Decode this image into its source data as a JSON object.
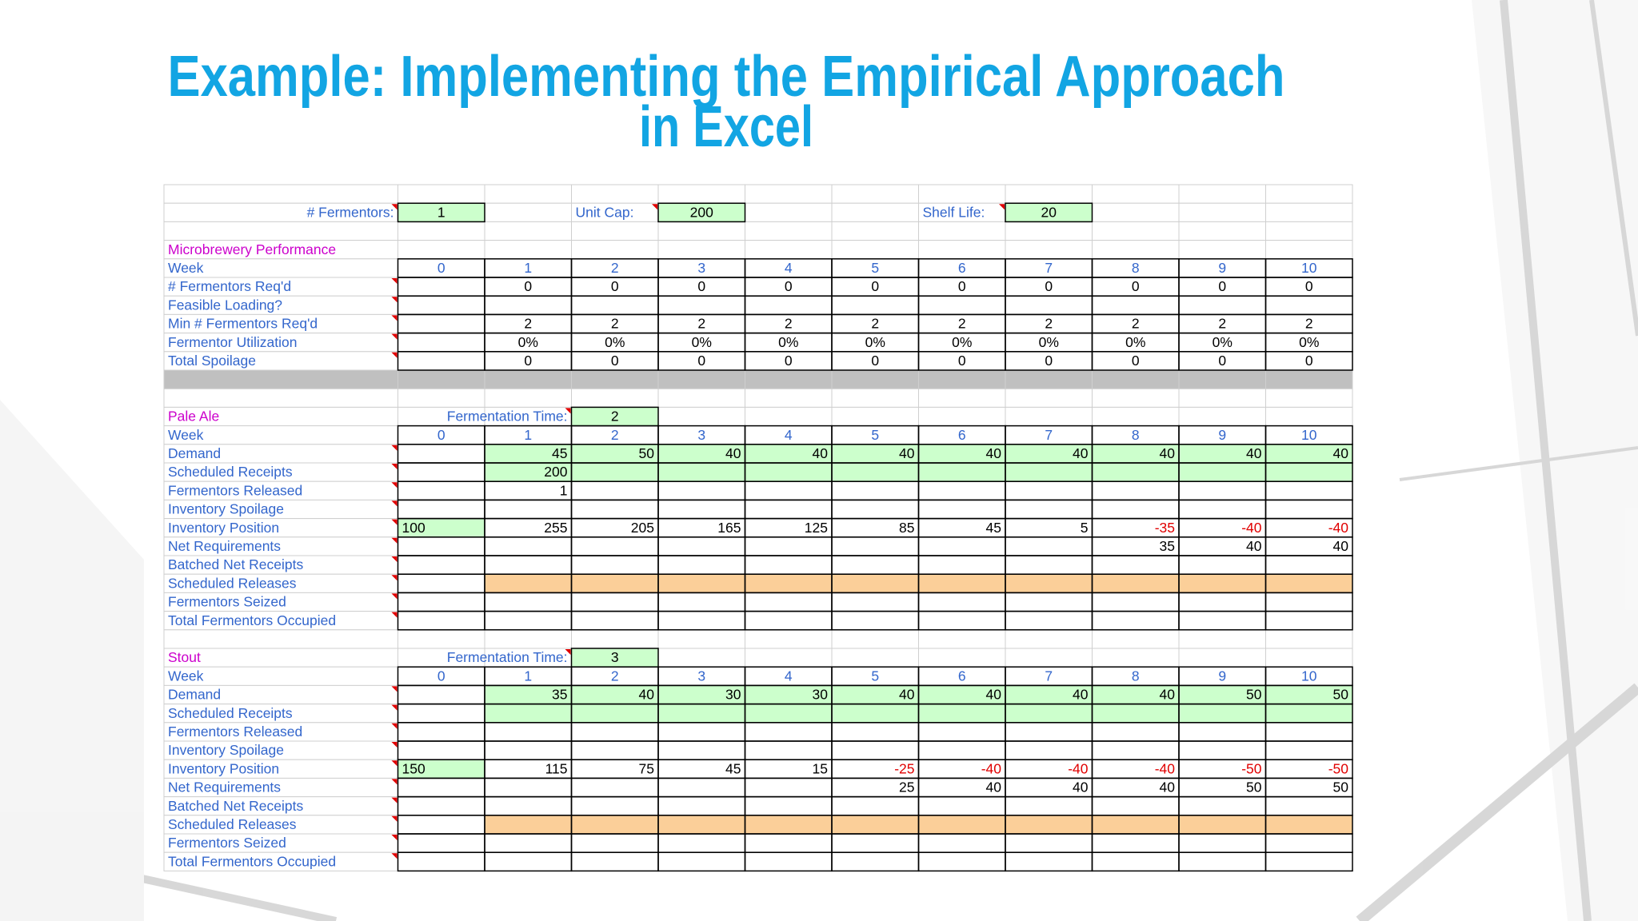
{
  "title_lines": [
    "Example: Implementing the Empirical Approach",
    "in Excel"
  ],
  "parameters": [
    {
      "label": "# Fermentors:",
      "value": 1
    },
    {
      "label": "Unit Cap:",
      "value": 200
    },
    {
      "label": "Shelf Life:",
      "value": 20
    }
  ],
  "performance": {
    "title": "Microbrewery Performance",
    "week_label": "Week",
    "weeks": [
      0,
      1,
      2,
      3,
      4,
      5,
      6,
      7,
      8,
      9,
      10
    ],
    "rows": [
      {
        "label": "# Fermentors Req'd",
        "cells": [
          null,
          0,
          0,
          0,
          0,
          0,
          0,
          0,
          0,
          0,
          0
        ]
      },
      {
        "label": "Feasible Loading?",
        "cells": [
          null,
          null,
          null,
          null,
          null,
          null,
          null,
          null,
          null,
          null,
          null
        ]
      },
      {
        "label": "Min # Fermentors Req'd",
        "cells": [
          null,
          2,
          2,
          2,
          2,
          2,
          2,
          2,
          2,
          2,
          2
        ]
      },
      {
        "label": "Fermentor Utilization",
        "cells": [
          null,
          "0%",
          "0%",
          "0%",
          "0%",
          "0%",
          "0%",
          "0%",
          "0%",
          "0%",
          "0%"
        ]
      },
      {
        "label": "Total Spoilage",
        "cells": [
          null,
          0,
          0,
          0,
          0,
          0,
          0,
          0,
          0,
          0,
          0
        ]
      }
    ]
  },
  "products": [
    {
      "name": "Pale Ale",
      "fermentation_time_label": "Fermentation Time:",
      "fermentation_time": 2,
      "week_label": "Week",
      "weeks": [
        0,
        1,
        2,
        3,
        4,
        5,
        6,
        7,
        8,
        9,
        10
      ],
      "rows": [
        {
          "label": "Demand",
          "cells": [
            null,
            45,
            50,
            40,
            40,
            40,
            40,
            40,
            40,
            40,
            40
          ]
        },
        {
          "label": "Scheduled Receipts",
          "cells": [
            null,
            200,
            null,
            null,
            null,
            null,
            null,
            null,
            null,
            null,
            null
          ]
        },
        {
          "label": "Fermentors Released",
          "cells": [
            null,
            1,
            null,
            null,
            null,
            null,
            null,
            null,
            null,
            null,
            null
          ]
        },
        {
          "label": "Inventory Spoilage",
          "cells": [
            null,
            null,
            null,
            null,
            null,
            null,
            null,
            null,
            null,
            null,
            null
          ]
        },
        {
          "label": "Inventory Position",
          "cells": [
            100,
            255,
            205,
            165,
            125,
            85,
            45,
            5,
            -35,
            -40,
            -40
          ]
        },
        {
          "label": "Net Requirements",
          "cells": [
            null,
            null,
            null,
            null,
            null,
            null,
            null,
            null,
            35,
            40,
            40
          ]
        },
        {
          "label": "Batched Net Receipts",
          "cells": [
            null,
            null,
            null,
            null,
            null,
            null,
            null,
            null,
            null,
            null,
            null
          ]
        },
        {
          "label": "Scheduled Releases",
          "cells": [
            null,
            null,
            null,
            null,
            null,
            null,
            null,
            null,
            null,
            null,
            null
          ]
        },
        {
          "label": "Fermentors Seized",
          "cells": [
            null,
            null,
            null,
            null,
            null,
            null,
            null,
            null,
            null,
            null,
            null
          ]
        },
        {
          "label": "Total Fermentors Occupied",
          "cells": [
            null,
            null,
            null,
            null,
            null,
            null,
            null,
            null,
            null,
            null,
            null
          ]
        }
      ]
    },
    {
      "name": "Stout",
      "fermentation_time_label": "Fermentation Time:",
      "fermentation_time": 3,
      "week_label": "Week",
      "weeks": [
        0,
        1,
        2,
        3,
        4,
        5,
        6,
        7,
        8,
        9,
        10
      ],
      "rows": [
        {
          "label": "Demand",
          "cells": [
            null,
            35,
            40,
            30,
            30,
            40,
            40,
            40,
            40,
            50,
            50
          ]
        },
        {
          "label": "Scheduled Receipts",
          "cells": [
            null,
            null,
            null,
            null,
            null,
            null,
            null,
            null,
            null,
            null,
            null
          ]
        },
        {
          "label": "Fermentors Released",
          "cells": [
            null,
            null,
            null,
            null,
            null,
            null,
            null,
            null,
            null,
            null,
            null
          ]
        },
        {
          "label": "Inventory Spoilage",
          "cells": [
            null,
            null,
            null,
            null,
            null,
            null,
            null,
            null,
            null,
            null,
            null
          ]
        },
        {
          "label": "Inventory Position",
          "cells": [
            150,
            115,
            75,
            45,
            15,
            -25,
            -40,
            -40,
            -40,
            -50,
            -50
          ]
        },
        {
          "label": "Net Requirements",
          "cells": [
            null,
            null,
            null,
            null,
            null,
            25,
            40,
            40,
            40,
            50,
            50
          ]
        },
        {
          "label": "Batched Net Receipts",
          "cells": [
            null,
            null,
            null,
            null,
            null,
            null,
            null,
            null,
            null,
            null,
            null
          ]
        },
        {
          "label": "Scheduled Releases",
          "cells": [
            null,
            null,
            null,
            null,
            null,
            null,
            null,
            null,
            null,
            null,
            null
          ]
        },
        {
          "label": "Fermentors Seized",
          "cells": [
            null,
            null,
            null,
            null,
            null,
            null,
            null,
            null,
            null,
            null,
            null
          ]
        },
        {
          "label": "Total Fermentors Occupied",
          "cells": [
            null,
            null,
            null,
            null,
            null,
            null,
            null,
            null,
            null,
            null,
            null
          ]
        }
      ]
    }
  ]
}
